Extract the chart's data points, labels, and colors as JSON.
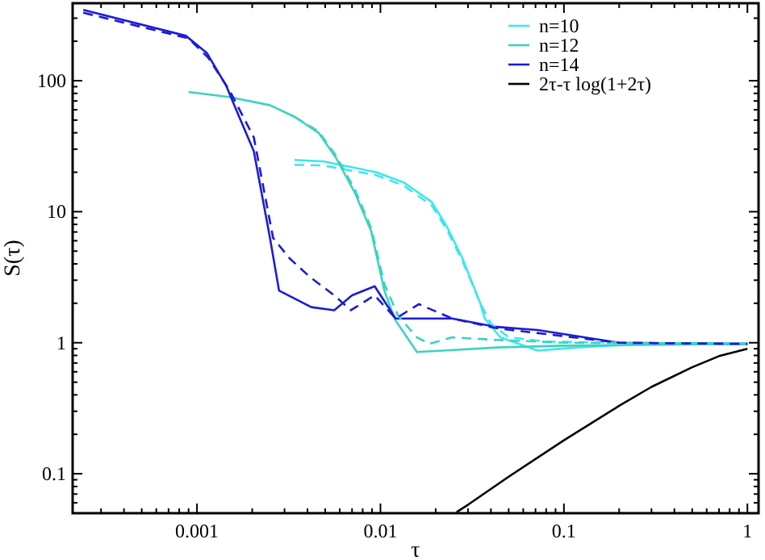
{
  "chart_data": {
    "type": "line",
    "xlabel": "τ",
    "ylabel": "S(τ)",
    "log": "xy",
    "grid": false,
    "legend": "top right",
    "xlim": [
      0.00021,
      1.15
    ],
    "ylim": [
      0.05,
      390
    ],
    "xticks": [
      {
        "value": 0.0003,
        "label": null
      },
      {
        "value": 0.0004,
        "label": null
      },
      {
        "value": 0.0005,
        "label": null
      },
      {
        "value": 0.0006,
        "label": null
      },
      {
        "value": 0.0007,
        "label": null
      },
      {
        "value": 0.0008,
        "label": null
      },
      {
        "value": 0.0009,
        "label": null
      },
      0.001,
      {
        "value": 0.002,
        "label": null
      },
      {
        "value": 0.003,
        "label": null
      },
      {
        "value": 0.004,
        "label": null
      },
      {
        "value": 0.005,
        "label": null
      },
      {
        "value": 0.006,
        "label": null
      },
      {
        "value": 0.007,
        "label": null
      },
      {
        "value": 0.008,
        "label": null
      },
      {
        "value": 0.009,
        "label": null
      },
      0.01,
      {
        "value": 0.02,
        "label": null
      },
      {
        "value": 0.03,
        "label": null
      },
      {
        "value": 0.04,
        "label": null
      },
      {
        "value": 0.05,
        "label": null
      },
      {
        "value": 0.06,
        "label": null
      },
      {
        "value": 0.07,
        "label": null
      },
      {
        "value": 0.08,
        "label": null
      },
      {
        "value": 0.09,
        "label": null
      },
      0.1,
      {
        "value": 0.2,
        "label": null
      },
      {
        "value": 0.3,
        "label": null
      },
      {
        "value": 0.4,
        "label": null
      },
      {
        "value": 0.5,
        "label": null
      },
      {
        "value": 0.6,
        "label": null
      },
      {
        "value": 0.7,
        "label": null
      },
      {
        "value": 0.8,
        "label": null
      },
      {
        "value": 0.9,
        "label": null
      },
      1
    ],
    "yticks": [
      {
        "value": 0.06,
        "label": null
      },
      {
        "value": 0.07,
        "label": null
      },
      {
        "value": 0.08,
        "label": null
      },
      {
        "value": 0.09,
        "label": null
      },
      0.1,
      {
        "value": 0.2,
        "label": null
      },
      {
        "value": 0.3,
        "label": null
      },
      {
        "value": 0.4,
        "label": null
      },
      {
        "value": 0.5,
        "label": null
      },
      {
        "value": 0.6,
        "label": null
      },
      {
        "value": 0.7,
        "label": null
      },
      {
        "value": 0.8,
        "label": null
      },
      {
        "value": 0.9,
        "label": null
      },
      1,
      {
        "value": 2,
        "label": null
      },
      {
        "value": 3,
        "label": null
      },
      {
        "value": 4,
        "label": null
      },
      {
        "value": 5,
        "label": null
      },
      {
        "value": 6,
        "label": null
      },
      {
        "value": 7,
        "label": null
      },
      {
        "value": 8,
        "label": null
      },
      {
        "value": 9,
        "label": null
      },
      10,
      {
        "value": 20,
        "label": null
      },
      {
        "value": 30,
        "label": null
      },
      {
        "value": 40,
        "label": null
      },
      {
        "value": 50,
        "label": null
      },
      {
        "value": 60,
        "label": null
      },
      {
        "value": 70,
        "label": null
      },
      {
        "value": 80,
        "label": null
      },
      {
        "value": 90,
        "label": null
      },
      100,
      {
        "value": 200,
        "label": null
      },
      {
        "value": 300,
        "label": null
      }
    ],
    "series": [
      {
        "name": "n=10",
        "color": "#3ee6ee",
        "line_style": "solid",
        "x": [
          0.0034,
          0.0049,
          0.0095,
          0.0134,
          0.019,
          0.023,
          0.028,
          0.035,
          0.037,
          0.045,
          0.072,
          0.117,
          0.28,
          1
        ],
        "values": [
          24.8,
          24.2,
          20,
          16.7,
          11.9,
          7.7,
          4.4,
          2.0,
          1.53,
          1.1,
          0.87,
          0.92,
          0.98,
          0.98
        ]
      },
      {
        "name": "n=12",
        "color": "#3cd2c0",
        "line_style": "solid",
        "x": [
          0.0009,
          0.0015,
          0.0025,
          0.0034,
          0.0046,
          0.0057,
          0.0073,
          0.0089,
          0.0105,
          0.012,
          0.0158,
          0.025,
          0.043,
          0.1,
          1
        ],
        "values": [
          82,
          75,
          65,
          53,
          40,
          26,
          13.7,
          7.1,
          2.5,
          1.5,
          0.85,
          0.88,
          0.92,
          0.95,
          0.98
        ]
      },
      {
        "name": "n=14",
        "color": "#1c1cd6",
        "line_style": "solid",
        "x": [
          0.00024,
          0.00087,
          0.00113,
          0.00144,
          0.00166,
          0.00204,
          0.0025,
          0.0028,
          0.0042,
          0.0056,
          0.007,
          0.0093,
          0.0121,
          0.0165,
          0.0246,
          0.043,
          0.072,
          0.2,
          1
        ],
        "values": [
          347,
          220,
          163,
          92,
          57,
          29,
          6.3,
          2.5,
          1.87,
          1.77,
          2.3,
          2.7,
          1.53,
          1.53,
          1.53,
          1.32,
          1.25,
          1.0,
          0.98
        ]
      },
      {
        "name": "2τ-τ log(1+2τ)",
        "color": "#000000",
        "line_style": "solid",
        "x": [
          0.026,
          0.03,
          0.05,
          0.1,
          0.2,
          0.3,
          0.5,
          0.7,
          1
        ],
        "values": [
          0.051,
          0.058,
          0.095,
          0.18,
          0.33,
          0.46,
          0.65,
          0.79,
          0.9
        ]
      },
      {
        "color": "#3ee6ee",
        "line_style": "dashed",
        "x": [
          0.0034,
          0.0049,
          0.0095,
          0.0134,
          0.019,
          0.023,
          0.028,
          0.035,
          0.04,
          0.05,
          0.08,
          0.2,
          1
        ],
        "values": [
          22.8,
          22.5,
          19,
          15.8,
          11.2,
          7.3,
          4.2,
          2.0,
          1.4,
          1.1,
          1.02,
          1.0,
          0.98
        ]
      },
      {
        "color": "#3cd2c0",
        "line_style": "dashed",
        "x": [
          0.0034,
          0.0046,
          0.0057,
          0.0073,
          0.0089,
          0.0105,
          0.0125,
          0.0158,
          0.0185,
          0.0246,
          0.043,
          0.1,
          1
        ],
        "values": [
          53,
          41,
          27,
          14.5,
          7.5,
          2.8,
          1.6,
          1.1,
          0.98,
          1.1,
          1.05,
          1.0,
          0.98
        ]
      },
      {
        "color": "#1c1cd6",
        "line_style": "dashed",
        "x": [
          0.00024,
          0.0009,
          0.00115,
          0.0015,
          0.00204,
          0.0026,
          0.0032,
          0.0041,
          0.0056,
          0.0069,
          0.0093,
          0.0121,
          0.0162,
          0.0246,
          0.043,
          0.2,
          1
        ],
        "values": [
          330,
          210,
          150,
          85,
          37,
          6.3,
          4.4,
          3.2,
          2.3,
          1.77,
          2.3,
          1.53,
          1.97,
          1.53,
          1.29,
          1.0,
          0.98
        ]
      }
    ]
  }
}
